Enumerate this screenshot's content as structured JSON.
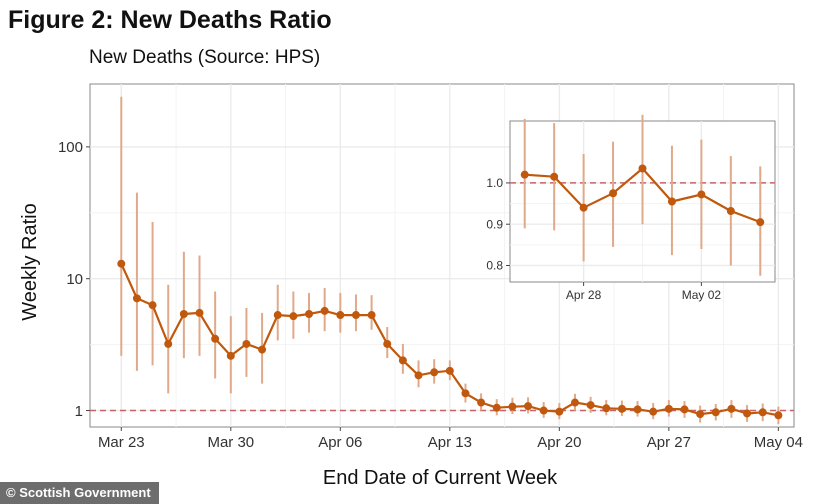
{
  "figure_title": "Figure 2: New Deaths Ratio",
  "subtitle": "New Deaths (Source: HPS)",
  "credit": "© Scottish Government",
  "colors": {
    "series": "#c0590d",
    "errorbar": "#e0a98a",
    "refline": "#c9636b",
    "grid": "#ebebeb",
    "panel_border": "#8a8a8a"
  },
  "chart_data": [
    {
      "type": "line",
      "xlabel": "End Date of Current Week",
      "ylabel": "Weekly Ratio",
      "yscale": "log",
      "ylim": [
        0.75,
        300
      ],
      "xlim": [
        "2020-03-21",
        "2020-05-05"
      ],
      "yticks": [
        1,
        10,
        100
      ],
      "ytick_labels": [
        "1",
        "10",
        "100"
      ],
      "xticks": [
        "2020-03-23",
        "2020-03-30",
        "2020-04-06",
        "2020-04-13",
        "2020-04-20",
        "2020-04-27",
        "2020-05-04"
      ],
      "xtick_labels": [
        "Mar 23",
        "Mar 30",
        "Apr 06",
        "Apr 13",
        "Apr 20",
        "Apr 27",
        "May 04"
      ],
      "reference_line": 1,
      "grid": true,
      "series": [
        {
          "x": [
            "2020-03-23",
            "2020-03-24",
            "2020-03-25",
            "2020-03-26",
            "2020-03-27",
            "2020-03-28",
            "2020-03-29",
            "2020-03-30",
            "2020-03-31",
            "2020-04-01",
            "2020-04-02",
            "2020-04-03",
            "2020-04-04",
            "2020-04-05",
            "2020-04-06",
            "2020-04-07",
            "2020-04-08",
            "2020-04-09",
            "2020-04-10",
            "2020-04-11",
            "2020-04-12",
            "2020-04-13",
            "2020-04-14",
            "2020-04-15",
            "2020-04-16",
            "2020-04-17",
            "2020-04-18",
            "2020-04-19",
            "2020-04-20",
            "2020-04-21",
            "2020-04-22",
            "2020-04-23",
            "2020-04-24",
            "2020-04-25",
            "2020-04-26",
            "2020-04-27",
            "2020-04-28",
            "2020-04-29",
            "2020-04-30",
            "2020-05-01",
            "2020-05-02",
            "2020-05-03",
            "2020-05-04"
          ],
          "y": [
            13,
            7.1,
            6.3,
            3.2,
            5.4,
            5.5,
            3.5,
            2.6,
            3.2,
            2.9,
            5.3,
            5.2,
            5.4,
            5.7,
            5.3,
            5.3,
            5.3,
            3.2,
            2.4,
            1.85,
            1.95,
            2.0,
            1.35,
            1.15,
            1.05,
            1.07,
            1.08,
            1.0,
            0.98,
            1.15,
            1.1,
            1.04,
            1.03,
            1.02,
            0.98,
            1.03,
            1.02,
            0.94,
            0.97,
            1.03,
            0.95,
            0.97,
            0.92
          ],
          "lower": [
            2.6,
            2.0,
            2.2,
            1.35,
            2.5,
            2.6,
            1.75,
            1.35,
            1.8,
            1.6,
            3.4,
            3.5,
            3.9,
            4.0,
            3.9,
            4.0,
            4.1,
            2.5,
            1.9,
            1.5,
            1.6,
            1.7,
            1.15,
            1.0,
            0.92,
            0.94,
            0.95,
            0.88,
            0.86,
            1.0,
            0.96,
            0.92,
            0.91,
            0.9,
            0.86,
            0.9,
            0.88,
            0.81,
            0.84,
            0.88,
            0.82,
            0.83,
            0.79
          ],
          "upper": [
            240,
            45,
            27,
            9.0,
            16,
            15,
            8.0,
            5.2,
            6.0,
            5.5,
            9.0,
            8.0,
            7.8,
            8.5,
            7.8,
            7.6,
            7.5,
            4.3,
            3.2,
            2.4,
            2.45,
            2.4,
            1.6,
            1.35,
            1.22,
            1.25,
            1.26,
            1.16,
            1.14,
            1.34,
            1.27,
            1.2,
            1.19,
            1.18,
            1.14,
            1.2,
            1.18,
            1.09,
            1.12,
            1.2,
            1.1,
            1.13,
            1.07
          ]
        }
      ]
    },
    {
      "type": "line",
      "xlabel": "",
      "ylabel": "",
      "ylim": [
        0.76,
        1.15
      ],
      "xlim": [
        "2020-04-25.5",
        "2020-05-04.5"
      ],
      "yticks": [
        0.8,
        0.9,
        1.0
      ],
      "ytick_labels": [
        "0.8",
        "0.9",
        "1.0"
      ],
      "xticks": [
        "2020-04-28",
        "2020-05-02"
      ],
      "xtick_labels": [
        "Apr 28",
        "May 02"
      ],
      "reference_line": 1,
      "grid": true,
      "series": [
        {
          "x": [
            "2020-04-26",
            "2020-04-27",
            "2020-04-28",
            "2020-04-29",
            "2020-04-30",
            "2020-05-01",
            "2020-05-02",
            "2020-05-03",
            "2020-05-04"
          ],
          "y": [
            1.02,
            1.015,
            0.94,
            0.975,
            1.035,
            0.955,
            0.972,
            0.932,
            0.905
          ],
          "lower": [
            0.89,
            0.885,
            0.81,
            0.845,
            0.9,
            0.825,
            0.84,
            0.8,
            0.775
          ],
          "upper": [
            1.155,
            1.145,
            1.07,
            1.1,
            1.165,
            1.09,
            1.105,
            1.065,
            1.04
          ]
        }
      ]
    }
  ]
}
